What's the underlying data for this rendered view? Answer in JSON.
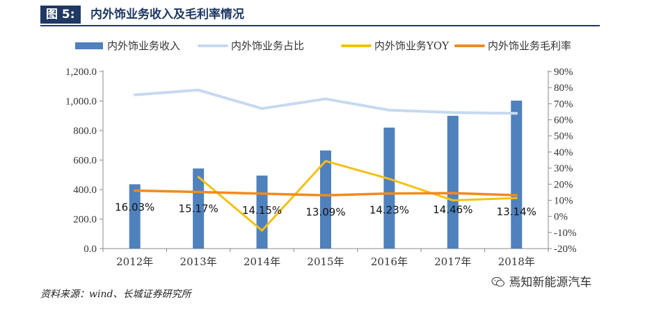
{
  "figure": {
    "label": "图 5:",
    "title": "内外饰业务收入及毛利率情况"
  },
  "source_note": "资料来源：wind、长城证券研究所",
  "watermark": "焉知新能源汽车",
  "colors": {
    "bar": "#4f81bd",
    "share_line": "#c6d9f1",
    "yoy_line": "#f5c011",
    "margin_line": "#f28a1c",
    "header": "#1f3864"
  },
  "chart_data": {
    "type": "bar",
    "categories": [
      "2012年",
      "2013年",
      "2014年",
      "2015年",
      "2016年",
      "2017年",
      "2018年"
    ],
    "y_left": {
      "min": 0,
      "max": 1200,
      "step": 200,
      "tick_labels": [
        "0.0",
        "200.0",
        "400.0",
        "600.0",
        "800.0",
        "1,000.0",
        "1,200.0"
      ]
    },
    "y_right": {
      "min": -20,
      "max": 90,
      "step": 10,
      "tick_labels": [
        "-20%",
        "-10%",
        "0%",
        "10%",
        "20%",
        "30%",
        "40%",
        "50%",
        "60%",
        "70%",
        "80%",
        "90%"
      ]
    },
    "grid": false,
    "legend_position": "top",
    "series": [
      {
        "name": "内外饰业务收入",
        "type": "bar",
        "axis": "left",
        "values": [
          436,
          543,
          495,
          665,
          820,
          900,
          1003
        ]
      },
      {
        "name": "内外饰业务占比",
        "type": "line",
        "axis": "right",
        "values": [
          75.5,
          78.5,
          67,
          73,
          66,
          64.5,
          64
        ]
      },
      {
        "name": "内外饰业务YOY",
        "type": "line",
        "axis": "right",
        "values": [
          null,
          24.5,
          -8.8,
          34.4,
          23.3,
          10,
          11.4
        ]
      },
      {
        "name": "内外饰业务毛利率",
        "type": "line",
        "axis": "right",
        "values": [
          16.03,
          15.17,
          14.15,
          13.09,
          14.23,
          14.46,
          13.14
        ],
        "data_labels": [
          "16.03%",
          "15.17%",
          "14.15%",
          "13.09%",
          "14.23%",
          "14.46%",
          "13.14%"
        ]
      }
    ]
  }
}
